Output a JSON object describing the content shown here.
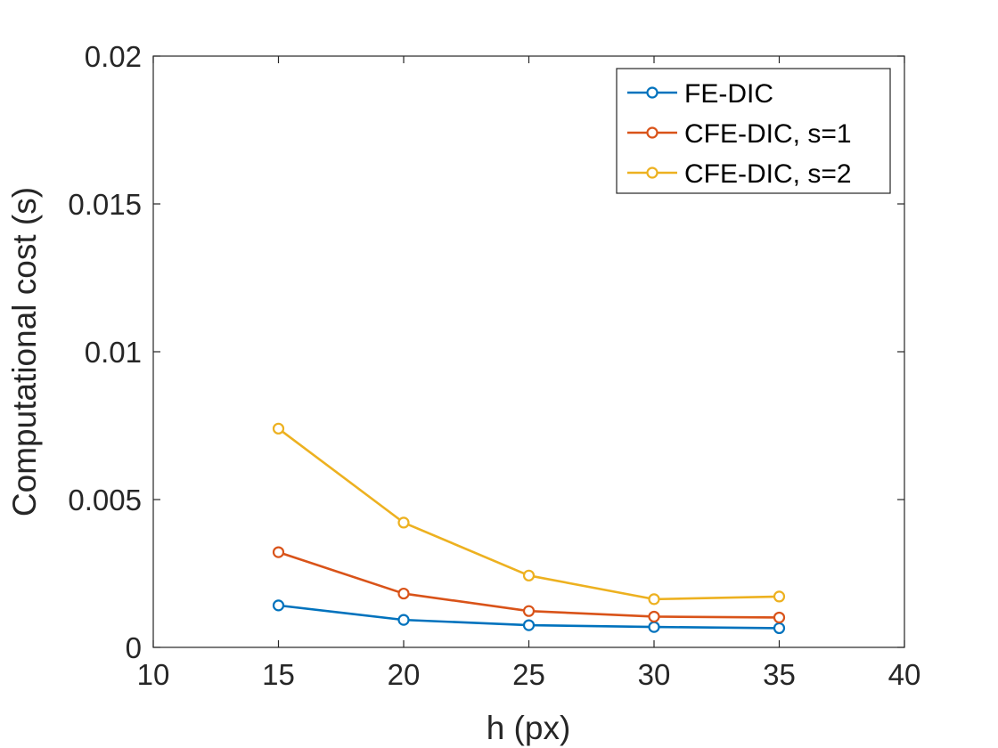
{
  "chart_data": {
    "type": "line",
    "title": "",
    "xlabel": "h (px)",
    "ylabel": "Computational cost (s)",
    "xlim": [
      10,
      40
    ],
    "ylim": [
      0,
      0.02
    ],
    "x_ticks": [
      10,
      15,
      20,
      25,
      30,
      35,
      40
    ],
    "x_tick_labels": [
      "10",
      "15",
      "20",
      "25",
      "30",
      "35",
      "40"
    ],
    "y_ticks": [
      0,
      0.005,
      0.01,
      0.015,
      0.02
    ],
    "y_tick_labels": [
      "0",
      "0.005",
      "0.01",
      "0.015",
      "0.02"
    ],
    "grid": false,
    "legend_position": "top-right",
    "x": [
      15,
      20,
      25,
      30,
      35
    ],
    "series": [
      {
        "name": "FE-DIC",
        "color": "#0072BD",
        "marker": "circle",
        "values": [
          0.00142,
          0.00093,
          0.00075,
          0.00069,
          0.00065
        ]
      },
      {
        "name": "CFE-DIC, s=1",
        "color": "#D95319",
        "marker": "circle",
        "values": [
          0.00322,
          0.00182,
          0.00123,
          0.00104,
          0.00101
        ]
      },
      {
        "name": "CFE-DIC, s=2",
        "color": "#EDB120",
        "marker": "circle",
        "values": [
          0.0074,
          0.00422,
          0.00243,
          0.00163,
          0.00172
        ]
      }
    ]
  }
}
